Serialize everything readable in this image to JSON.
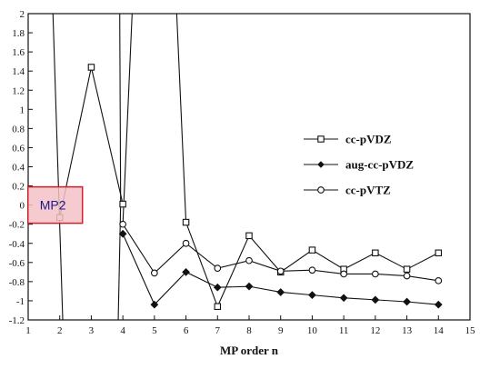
{
  "chart_data": {
    "type": "line",
    "title": "",
    "xlabel": "MP order n",
    "ylabel": "",
    "xlim": [
      1,
      15
    ],
    "ylim": [
      -1.2,
      2
    ],
    "x_ticks": [
      1,
      2,
      3,
      4,
      5,
      6,
      7,
      8,
      9,
      10,
      11,
      12,
      13,
      14,
      15
    ],
    "y_ticks": [
      2,
      1.8,
      1.6,
      1.4,
      1.2,
      1,
      0.8,
      0.6,
      0.4,
      0.2,
      0,
      -0.2,
      -0.4,
      -0.6,
      -0.8,
      -1,
      -1.2
    ],
    "y_tick_labels": [
      "2",
      "1.8",
      "1.6",
      "1.4",
      "1.2",
      "1",
      "0.8",
      "0.6",
      "0.4",
      "0.2",
      "0",
      "-0.2",
      "-0.4",
      "-0.6",
      "-0.8",
      "-1",
      "-1.2"
    ],
    "grid": false,
    "legend_position": "right",
    "series": [
      {
        "name": "cc-pVDZ",
        "marker": "square",
        "x": [
          2,
          3,
          4,
          6,
          7,
          8,
          9,
          10,
          11,
          12,
          13,
          14
        ],
        "y": [
          -0.13,
          1.44,
          0.01,
          -0.18,
          -1.06,
          -0.32,
          -0.7,
          -0.47,
          -0.67,
          -0.5,
          -0.67,
          -0.5
        ]
      },
      {
        "name": "aug-cc-pVDZ",
        "marker": "diamond",
        "x": [
          4,
          5,
          6,
          7,
          8,
          9,
          10,
          11,
          12,
          13,
          14
        ],
        "y": [
          -0.3,
          -1.04,
          -0.7,
          -0.86,
          -0.85,
          -0.91,
          -0.94,
          -0.97,
          -0.99,
          -1.01,
          -1.04
        ]
      },
      {
        "name": "cc-pVTZ",
        "marker": "circle",
        "x": [
          4,
          5,
          6,
          7,
          8,
          9,
          10,
          11,
          12,
          13,
          14
        ],
        "y": [
          -0.2,
          -0.71,
          -0.4,
          -0.66,
          -0.58,
          -0.69,
          -0.68,
          -0.72,
          -0.72,
          -0.74,
          -0.79
        ]
      }
    ],
    "annotations": [
      {
        "text": "MP2",
        "at_x": 2
      }
    ]
  }
}
